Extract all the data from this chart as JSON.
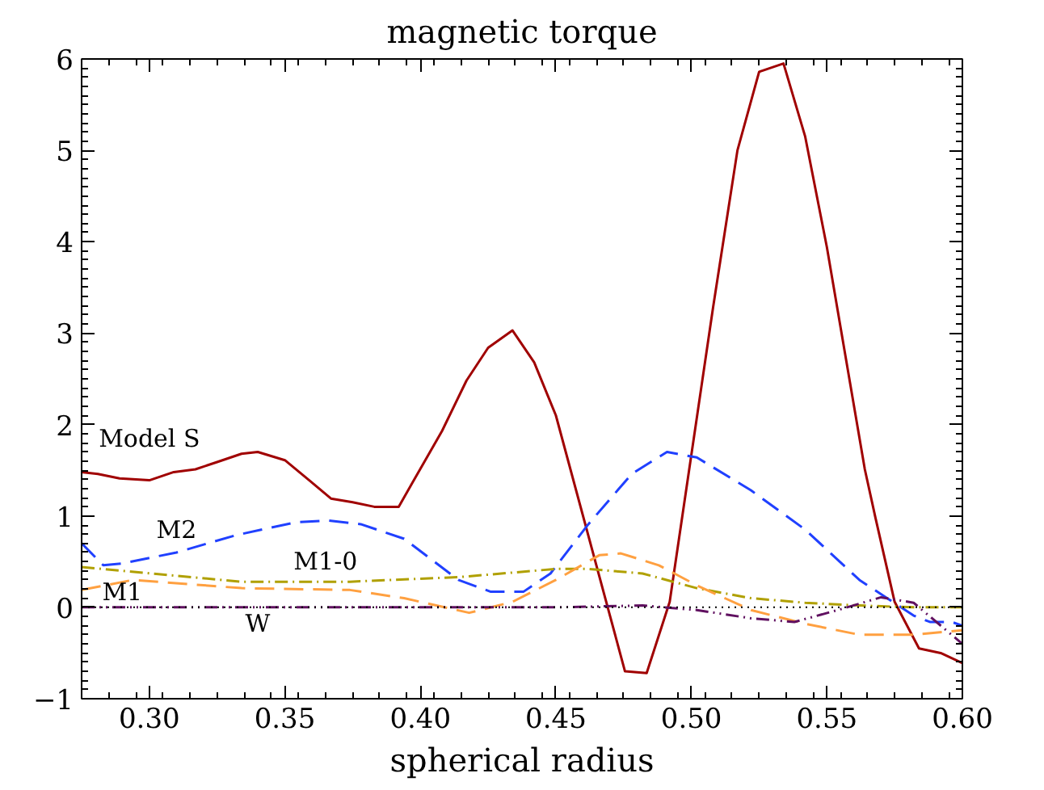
{
  "chart_data": {
    "type": "line",
    "title": "magnetic torque",
    "xlabel": "spherical radius",
    "xlim": [
      0.275,
      0.6
    ],
    "ylim": [
      -1,
      6
    ],
    "xticks": [
      {
        "value": 0.3,
        "label": "0.30"
      },
      {
        "value": 0.35,
        "label": "0.35"
      },
      {
        "value": 0.4,
        "label": "0.40"
      },
      {
        "value": 0.45,
        "label": "0.45"
      },
      {
        "value": 0.5,
        "label": "0.50"
      },
      {
        "value": 0.55,
        "label": "0.55"
      },
      {
        "value": 0.6,
        "label": "0.60"
      }
    ],
    "yticks": [
      -1,
      0,
      1,
      2,
      3,
      4,
      5,
      6
    ],
    "grid": false,
    "marker": "none",
    "ref_lines": [
      {
        "axis": "y",
        "value": 0,
        "color": "#000000",
        "line_style": "dotted"
      }
    ],
    "series": [
      {
        "name": "Model S",
        "color": "#a00000",
        "line_style": "solid",
        "x": [
          0.275,
          0.281,
          0.289,
          0.3,
          0.309,
          0.317,
          0.325,
          0.334,
          0.34,
          0.35,
          0.359,
          0.367,
          0.375,
          0.383,
          0.392,
          0.408,
          0.417,
          0.425,
          0.434,
          0.442,
          0.45,
          0.4755,
          0.4835,
          0.492,
          0.508,
          0.517,
          0.525,
          0.534,
          0.542,
          0.55,
          0.558,
          0.564,
          0.568,
          0.575,
          0.584,
          0.592,
          0.6
        ],
        "values": [
          1.48,
          1.46,
          1.41,
          1.39,
          1.48,
          1.51,
          1.59,
          1.68,
          1.7,
          1.61,
          1.39,
          1.19,
          1.15,
          1.1,
          1.1,
          1.93,
          2.48,
          2.84,
          3.03,
          2.68,
          2.1,
          -0.7,
          -0.72,
          0.06,
          3.28,
          5.0,
          5.86,
          5.95,
          5.15,
          3.94,
          2.55,
          1.51,
          0.97,
          0.06,
          -0.45,
          -0.5,
          -0.61
        ]
      },
      {
        "name": "M2",
        "color": "#2040ff",
        "line_style": "dashed",
        "x": [
          0.275,
          0.283,
          0.29,
          0.31,
          0.332,
          0.354,
          0.366,
          0.378,
          0.394,
          0.414,
          0.426,
          0.438,
          0.448,
          0.462,
          0.478,
          0.491,
          0.502,
          0.522,
          0.542,
          0.562,
          0.582,
          0.588,
          0.596,
          0.6
        ],
        "values": [
          0.7,
          0.46,
          0.48,
          0.6,
          0.79,
          0.93,
          0.95,
          0.91,
          0.75,
          0.3,
          0.17,
          0.17,
          0.37,
          0.91,
          1.46,
          1.7,
          1.64,
          1.28,
          0.85,
          0.3,
          -0.09,
          -0.16,
          -0.16,
          -0.2
        ]
      },
      {
        "name": "M1-0",
        "color": "#b0a000",
        "line_style": "dashdot",
        "x": [
          0.275,
          0.334,
          0.374,
          0.414,
          0.45,
          0.462,
          0.482,
          0.502,
          0.522,
          0.542,
          0.562,
          0.582,
          0.6
        ],
        "values": [
          0.44,
          0.28,
          0.28,
          0.33,
          0.42,
          0.42,
          0.37,
          0.21,
          0.1,
          0.05,
          0.02,
          0.0,
          0.0
        ]
      },
      {
        "name": "M1",
        "color": "#ffa040",
        "line_style": "dashed",
        "x": [
          0.275,
          0.294,
          0.334,
          0.374,
          0.394,
          0.418,
          0.434,
          0.45,
          0.466,
          0.474,
          0.488,
          0.502,
          0.522,
          0.542,
          0.562,
          0.582,
          0.6
        ],
        "values": [
          0.19,
          0.3,
          0.21,
          0.19,
          0.1,
          -0.06,
          0.06,
          0.3,
          0.57,
          0.59,
          0.46,
          0.24,
          -0.03,
          -0.18,
          -0.3,
          -0.3,
          -0.25
        ]
      },
      {
        "name": "W",
        "color": "#601060",
        "line_style": "dashdotdot",
        "x": [
          0.275,
          0.35,
          0.45,
          0.482,
          0.502,
          0.522,
          0.538,
          0.554,
          0.57,
          0.582,
          0.6
        ],
        "values": [
          0.0,
          0.0,
          0.0,
          0.02,
          -0.03,
          -0.12,
          -0.16,
          -0.03,
          0.11,
          0.05,
          -0.4
        ]
      }
    ]
  }
}
